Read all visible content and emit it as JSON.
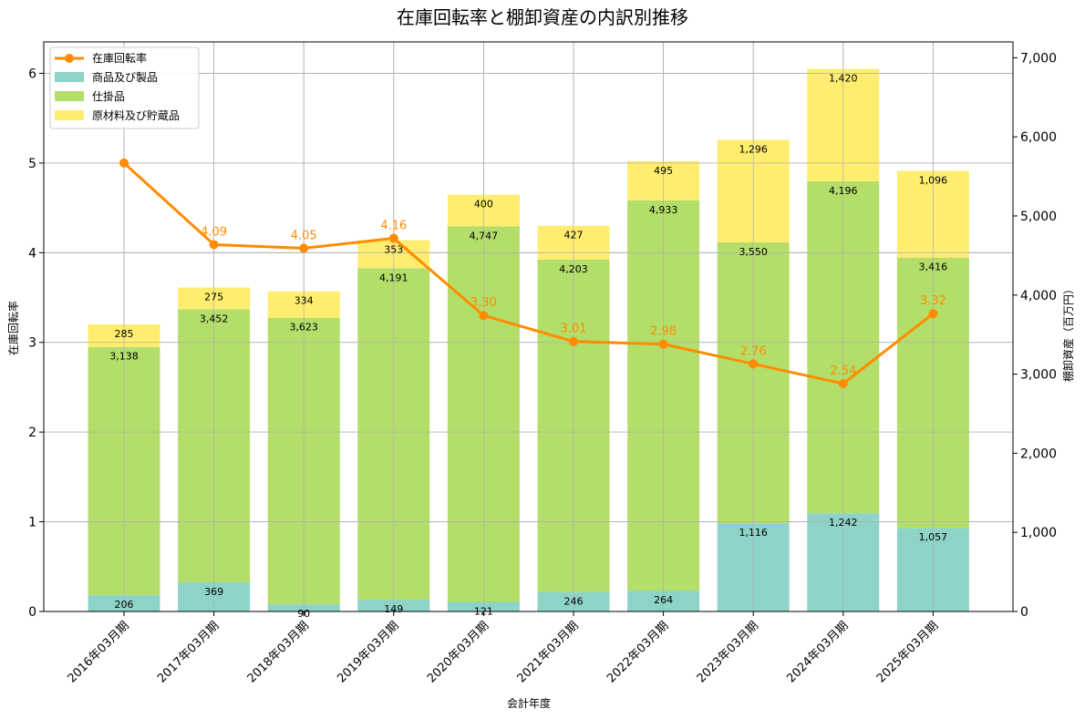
{
  "chart_data": {
    "type": "bar",
    "title": "在庫回転率と棚卸資産の内訳別推移",
    "xlabel": "会計年度",
    "ylabel_left": "在庫回転率",
    "ylabel_right": "棚卸資産（百万円）",
    "categories": [
      "2016年03月期",
      "2017年03月期",
      "2018年03月期",
      "2019年03月期",
      "2020年03月期",
      "2021年03月期",
      "2022年03月期",
      "2023年03月期",
      "2024年03月期",
      "2025年03月期"
    ],
    "series": [
      {
        "name": "商品及び製品",
        "color": "#8dd3c7",
        "values": [
          206,
          369,
          90,
          149,
          121,
          246,
          264,
          1116,
          1242,
          1057
        ],
        "labels": [
          "206",
          "369",
          "90",
          "149",
          "121",
          "246",
          "264",
          "1,116",
          "1,242",
          "1,057"
        ]
      },
      {
        "name": "仕掛品",
        "color": "#b3de69",
        "values": [
          3138,
          3452,
          3623,
          4191,
          4747,
          4203,
          4933,
          3550,
          4196,
          3416
        ],
        "labels": [
          "3,138",
          "3,452",
          "3,623",
          "4,191",
          "4,747",
          "4,203",
          "4,933",
          "3,550",
          "4,196",
          "3,416"
        ]
      },
      {
        "name": "原材料及び貯蔵品",
        "color": "#ffed6f",
        "values": [
          285,
          275,
          334,
          353,
          400,
          427,
          495,
          1296,
          1420,
          1096
        ],
        "labels": [
          "285",
          "275",
          "334",
          "353",
          "400",
          "427",
          "495",
          "1,296",
          "1,420",
          "1,096"
        ]
      }
    ],
    "line": {
      "name": "在庫回転率",
      "color": "#ff8c00",
      "values": [
        5.0,
        4.09,
        4.05,
        4.16,
        3.3,
        3.01,
        2.98,
        2.76,
        2.54,
        3.32
      ],
      "labels": [
        "",
        "4.09",
        "4.05",
        "4.16",
        "3.30",
        "3.01",
        "2.98",
        "2.76",
        "2.54",
        "3.32"
      ]
    },
    "ylim_left": [
      0,
      6.35
    ],
    "yticks_left": [
      "0",
      "1",
      "2",
      "3",
      "4",
      "5",
      "6"
    ],
    "ylim_right": [
      0,
      7200
    ],
    "yticks_right": [
      "0",
      "1,000",
      "2,000",
      "3,000",
      "4,000",
      "5,000",
      "6,000",
      "7,000"
    ],
    "grid": true,
    "legend": "top-left"
  }
}
